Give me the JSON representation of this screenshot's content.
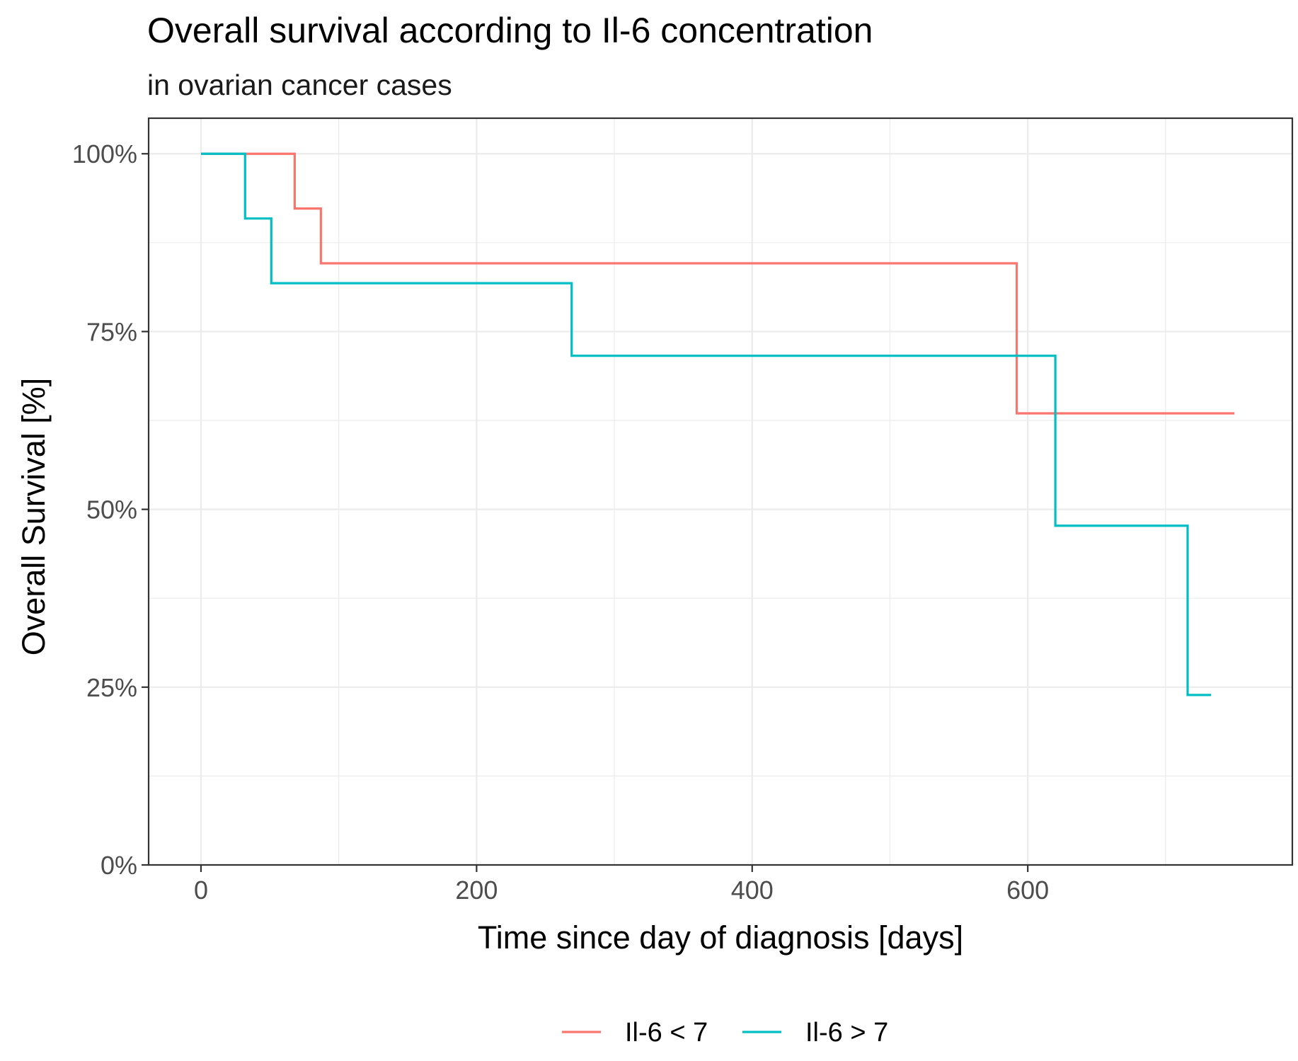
{
  "chart_data": {
    "type": "line",
    "title": "Overall survival according to Il-6 concentration",
    "subtitle": "in ovarian cancer cases",
    "xlabel": "Time since day of diagnosis [days]",
    "ylabel": "Overall Survival [%]",
    "xlim": [
      -38,
      792
    ],
    "ylim": [
      0,
      1.05
    ],
    "x_ticks": [
      0,
      200,
      400,
      600
    ],
    "x_tick_labels": [
      "0",
      "200",
      "400",
      "600"
    ],
    "y_ticks": [
      0,
      0.25,
      0.5,
      0.75,
      1.0
    ],
    "y_tick_labels": [
      "0%",
      "25%",
      "50%",
      "75%",
      "100%"
    ],
    "grid": true,
    "legend_position": "bottom",
    "step": true,
    "series": [
      {
        "name": "Il-6 < 7",
        "color": "#F8766D",
        "x": [
          0,
          68,
          87,
          592,
          750
        ],
        "y": [
          1.0,
          0.923,
          0.846,
          0.635,
          0.635
        ]
      },
      {
        "name": "Il-6 > 7",
        "color": "#00BFC4",
        "x": [
          0,
          32,
          51,
          269,
          620,
          716,
          733
        ],
        "y": [
          1.0,
          0.909,
          0.818,
          0.716,
          0.477,
          0.239,
          0.239
        ]
      }
    ]
  }
}
